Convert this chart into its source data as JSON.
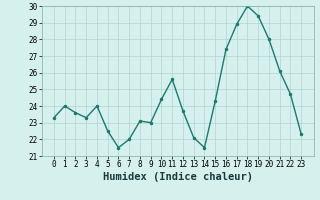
{
  "x": [
    0,
    1,
    2,
    3,
    4,
    5,
    6,
    7,
    8,
    9,
    10,
    11,
    12,
    13,
    14,
    15,
    16,
    17,
    18,
    19,
    20,
    21,
    22,
    23
  ],
  "y": [
    23.3,
    24.0,
    23.6,
    23.3,
    24.0,
    22.5,
    21.5,
    22.0,
    23.1,
    23.0,
    24.4,
    25.6,
    23.7,
    22.1,
    21.5,
    24.3,
    27.4,
    28.9,
    30.0,
    29.4,
    28.0,
    26.1,
    24.7,
    22.3
  ],
  "line_color": "#1a7a6e",
  "marker": ".",
  "marker_size": 3,
  "bg_color": "#d6f0ee",
  "grid_color": "#b0d4d0",
  "xlabel": "Humidex (Indice chaleur)",
  "ylim": [
    21,
    30
  ],
  "yticks": [
    21,
    22,
    23,
    24,
    25,
    26,
    27,
    28,
    29,
    30
  ],
  "xticks": [
    0,
    1,
    2,
    3,
    4,
    5,
    6,
    7,
    8,
    9,
    10,
    11,
    12,
    13,
    14,
    15,
    16,
    17,
    18,
    19,
    20,
    21,
    22,
    23
  ],
  "tick_fontsize": 5.5,
  "xlabel_fontsize": 7.5,
  "line_width": 1.0,
  "spine_color": "#80b0ac"
}
